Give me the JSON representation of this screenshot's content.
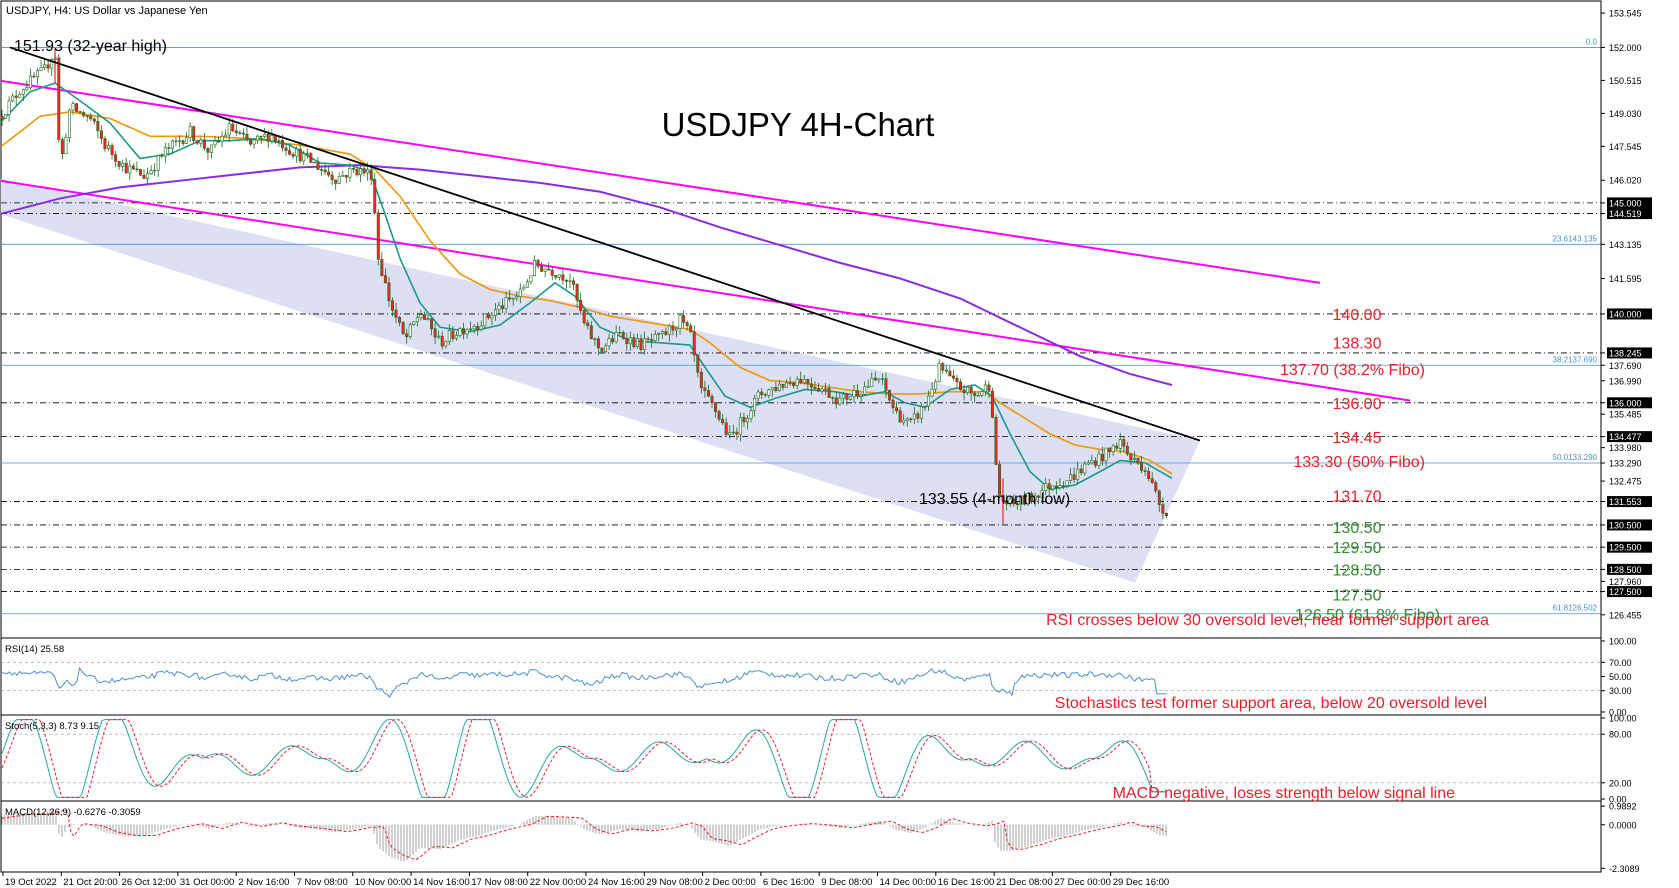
{
  "header": {
    "symbol_info": "USDJPY, H4:  US Dollar vs Japanese Yen",
    "chart_title": "USDJPY 4H-Chart"
  },
  "colors": {
    "support_label": "#2e8b2e",
    "resistance_label": "#e8202a",
    "channel_fill": "#dde0f5",
    "trendline": "#000000",
    "pink_line": "#ff00ff",
    "sma200": "#8a2be2",
    "sma50": "#f0960a",
    "sma20": "#1a9a8a",
    "candle": "#1a6b1a",
    "fibo": "#4a8fd8",
    "rsi_line": "#4a8fd8",
    "stoch_main": "#2aa8a0",
    "stoch_signal": "#e8202a",
    "macd_hist": "#a0a0a0",
    "macd_signal": "#e8202a"
  },
  "chart_data": [
    {
      "id": "price",
      "type": "candlestick",
      "title": "USDJPY 4H-Chart",
      "ylim": [
        125.5,
        154.0
      ],
      "close_path": [
        [
          0,
          148.9
        ],
        [
          20,
          150.1
        ],
        [
          45,
          151.0
        ],
        [
          55,
          151.9
        ],
        [
          60,
          146.5
        ],
        [
          70,
          149.3
        ],
        [
          90,
          148.8
        ],
        [
          105,
          147.6
        ],
        [
          125,
          146.6
        ],
        [
          145,
          146.2
        ],
        [
          165,
          147.3
        ],
        [
          190,
          148.2
        ],
        [
          210,
          147.3
        ],
        [
          230,
          148.4
        ],
        [
          250,
          147.6
        ],
        [
          270,
          148.1
        ],
        [
          290,
          147.4
        ],
        [
          310,
          146.9
        ],
        [
          335,
          146.1
        ],
        [
          355,
          146.5
        ],
        [
          372,
          146.3
        ],
        [
          378,
          142.6
        ],
        [
          390,
          140.5
        ],
        [
          405,
          138.8
        ],
        [
          420,
          140.1
        ],
        [
          440,
          138.7
        ],
        [
          460,
          139.3
        ],
        [
          480,
          139.6
        ],
        [
          500,
          140.3
        ],
        [
          520,
          140.9
        ],
        [
          535,
          142.2
        ],
        [
          550,
          142.0
        ],
        [
          570,
          141.6
        ],
        [
          585,
          139.4
        ],
        [
          600,
          138.4
        ],
        [
          620,
          139.1
        ],
        [
          640,
          138.6
        ],
        [
          660,
          138.9
        ],
        [
          680,
          139.7
        ],
        [
          690,
          139.1
        ],
        [
          700,
          136.6
        ],
        [
          715,
          135.7
        ],
        [
          730,
          134.4
        ],
        [
          745,
          135.4
        ],
        [
          760,
          136.4
        ],
        [
          780,
          136.8
        ],
        [
          800,
          137.1
        ],
        [
          820,
          136.7
        ],
        [
          840,
          136.1
        ],
        [
          860,
          136.6
        ],
        [
          880,
          137.1
        ],
        [
          895,
          135.6
        ],
        [
          910,
          135.0
        ],
        [
          925,
          135.9
        ],
        [
          940,
          137.6
        ],
        [
          955,
          136.8
        ],
        [
          975,
          136.3
        ],
        [
          992,
          136.9
        ],
        [
          993,
          134.0
        ],
        [
          1000,
          131.7
        ],
        [
          1010,
          131.4
        ],
        [
          1030,
          131.7
        ],
        [
          1050,
          132.3
        ],
        [
          1070,
          132.6
        ],
        [
          1090,
          133.3
        ],
        [
          1110,
          133.8
        ],
        [
          1120,
          134.3
        ],
        [
          1130,
          133.5
        ],
        [
          1145,
          133.1
        ],
        [
          1160,
          131.4
        ],
        [
          1168,
          131.05
        ]
      ],
      "sma20": [
        [
          0,
          148.6
        ],
        [
          30,
          150.0
        ],
        [
          55,
          150.4
        ],
        [
          80,
          149.6
        ],
        [
          110,
          148.6
        ],
        [
          140,
          147.0
        ],
        [
          170,
          147.2
        ],
        [
          200,
          147.8
        ],
        [
          230,
          147.8
        ],
        [
          260,
          147.9
        ],
        [
          290,
          147.6
        ],
        [
          320,
          146.8
        ],
        [
          350,
          146.7
        ],
        [
          370,
          146.4
        ],
        [
          385,
          144.5
        ],
        [
          400,
          142.5
        ],
        [
          420,
          140.5
        ],
        [
          440,
          139.4
        ],
        [
          470,
          139.2
        ],
        [
          500,
          139.5
        ],
        [
          530,
          140.5
        ],
        [
          555,
          141.4
        ],
        [
          575,
          140.8
        ],
        [
          600,
          139.4
        ],
        [
          630,
          138.8
        ],
        [
          660,
          138.7
        ],
        [
          690,
          138.6
        ],
        [
          705,
          137.6
        ],
        [
          725,
          136.3
        ],
        [
          750,
          135.8
        ],
        [
          775,
          136.2
        ],
        [
          805,
          136.6
        ],
        [
          835,
          136.5
        ],
        [
          860,
          136.3
        ],
        [
          885,
          136.5
        ],
        [
          905,
          136.0
        ],
        [
          925,
          135.8
        ],
        [
          950,
          136.6
        ],
        [
          975,
          136.8
        ],
        [
          992,
          136.3
        ],
        [
          1010,
          134.6
        ],
        [
          1030,
          132.9
        ],
        [
          1050,
          132.1
        ],
        [
          1075,
          132.3
        ],
        [
          1100,
          132.9
        ],
        [
          1120,
          133.4
        ],
        [
          1145,
          133.3
        ],
        [
          1172,
          132.6
        ]
      ],
      "sma50": [
        [
          0,
          147.5
        ],
        [
          40,
          148.9
        ],
        [
          70,
          149.1
        ],
        [
          110,
          148.8
        ],
        [
          150,
          148.0
        ],
        [
          200,
          148.0
        ],
        [
          250,
          147.9
        ],
        [
          300,
          147.6
        ],
        [
          350,
          147.2
        ],
        [
          375,
          146.5
        ],
        [
          400,
          145.3
        ],
        [
          430,
          143.3
        ],
        [
          460,
          141.8
        ],
        [
          490,
          141.1
        ],
        [
          520,
          140.8
        ],
        [
          550,
          140.6
        ],
        [
          580,
          140.3
        ],
        [
          610,
          139.9
        ],
        [
          650,
          139.6
        ],
        [
          690,
          139.3
        ],
        [
          710,
          138.7
        ],
        [
          740,
          137.6
        ],
        [
          770,
          137.0
        ],
        [
          800,
          136.9
        ],
        [
          830,
          136.7
        ],
        [
          860,
          136.5
        ],
        [
          890,
          136.4
        ],
        [
          920,
          136.4
        ],
        [
          950,
          136.5
        ],
        [
          985,
          136.5
        ],
        [
          1000,
          136.0
        ],
        [
          1025,
          135.3
        ],
        [
          1050,
          134.6
        ],
        [
          1075,
          134.1
        ],
        [
          1100,
          133.9
        ],
        [
          1125,
          133.8
        ],
        [
          1150,
          133.4
        ],
        [
          1172,
          132.8
        ]
      ],
      "sma200": [
        [
          0,
          144.5
        ],
        [
          60,
          145.2
        ],
        [
          120,
          145.7
        ],
        [
          180,
          146.0
        ],
        [
          240,
          146.3
        ],
        [
          300,
          146.6
        ],
        [
          360,
          146.7
        ],
        [
          420,
          146.5
        ],
        [
          480,
          146.2
        ],
        [
          540,
          145.9
        ],
        [
          600,
          145.5
        ],
        [
          660,
          144.8
        ],
        [
          720,
          143.9
        ],
        [
          780,
          143.1
        ],
        [
          840,
          142.3
        ],
        [
          900,
          141.6
        ],
        [
          960,
          140.7
        ],
        [
          1020,
          139.4
        ],
        [
          1080,
          138.1
        ],
        [
          1130,
          137.3
        ],
        [
          1172,
          136.8
        ]
      ],
      "trendline": [
        [
          10,
          152.0
        ],
        [
          1200,
          134.3
        ]
      ],
      "pink_upper": [
        [
          0,
          150.5
        ],
        [
          1320,
          141.4
        ]
      ],
      "pink_lower": [
        [
          0,
          146.0
        ],
        [
          1410,
          136.1
        ]
      ],
      "channel": [
        [
          0,
          144.5
        ],
        [
          0,
          146.1
        ],
        [
          1200,
          134.3
        ],
        [
          1135,
          127.9
        ]
      ],
      "fibo_levels": [
        {
          "value": 152.0,
          "label": "0.0"
        },
        {
          "value": 143.135,
          "label": "23.6143.135"
        },
        {
          "value": 137.69,
          "label": "38.2137.690"
        },
        {
          "value": 133.29,
          "label": "50.0133.290"
        },
        {
          "value": 126.502,
          "label": "61.8126.502"
        }
      ],
      "hlines": [
        145.0,
        144.519,
        140.0,
        138.245,
        136.0,
        134.477,
        131.553,
        130.5,
        129.5,
        128.5,
        127.5
      ],
      "yaxis_ticks": [
        "153.545",
        "152.000",
        "150.515",
        "149.030",
        "147.545",
        "146.020",
        "145.000",
        "144.519",
        "143.135",
        "141.595",
        "140.000",
        "138.245",
        "137.690",
        "136.990",
        "136.000",
        "135.485",
        "134.477",
        "133.980",
        "133.290",
        "132.475",
        "131.553",
        "130.500",
        "129.500",
        "128.500",
        "127.960",
        "127.500",
        "126.455"
      ],
      "xaxis_ticks": [
        "19 Oct 2022",
        "21 Oct 20:00",
        "26 Oct 12:00",
        "31 Oct 00:00",
        "2 Nov 16:00",
        "7 Nov 08:00",
        "10 Nov 00:00",
        "14 Nov 16:00",
        "17 Nov 08:00",
        "22 Nov 00:00",
        "24 Nov 16:00",
        "29 Nov 08:00",
        "2 Dec 00:00",
        "6 Dec 16:00",
        "9 Dec 08:00",
        "14 Dec 00:00",
        "16 Dec 16:00",
        "21 Dec 08:00",
        "27 Dec 00:00",
        "29 Dec 16:00"
      ],
      "annotations": [
        {
          "text": "151.93 (32-year high)",
          "kind": "black"
        },
        {
          "text": "133.55 (4-month low)",
          "kind": "black"
        },
        {
          "text": "140.00",
          "kind": "resistance",
          "value": 140.0
        },
        {
          "text": "138.30",
          "kind": "resistance",
          "value": 138.3
        },
        {
          "text": "137.70 (38.2% Fibo)",
          "kind": "resistance",
          "value": 137.7
        },
        {
          "text": "136.00",
          "kind": "resistance",
          "value": 136.0
        },
        {
          "text": "134.45",
          "kind": "resistance",
          "value": 134.45
        },
        {
          "text": "133.30 (50% Fibo)",
          "kind": "resistance",
          "value": 133.3
        },
        {
          "text": "131.70",
          "kind": "resistance",
          "value": 131.7
        },
        {
          "text": "130.50",
          "kind": "support",
          "value": 130.5
        },
        {
          "text": "129.50",
          "kind": "support",
          "value": 129.5
        },
        {
          "text": "128.50",
          "kind": "support",
          "value": 128.5
        },
        {
          "text": "127.50",
          "kind": "support",
          "value": 127.5
        },
        {
          "text": "126.50 (61.8% Fibo)",
          "kind": "support",
          "value": 126.5
        }
      ]
    },
    {
      "id": "rsi",
      "type": "line",
      "label": "RSI(14) 25.58",
      "ylim": [
        0,
        100
      ],
      "yaxis_ticks": [
        "100.00",
        "70.00",
        "50.00",
        "30.00",
        "0.00"
      ],
      "levels": [
        70,
        30
      ],
      "annotation": "RSI crosses below 30 oversold level, near former support area"
    },
    {
      "id": "stochastics",
      "type": "line",
      "label": "Stoch(5,3,3) 8.73 9.15",
      "ylim": [
        0,
        100
      ],
      "yaxis_ticks": [
        "100.00",
        "80.00",
        "20.00",
        "0.00"
      ],
      "levels": [
        80,
        20
      ],
      "annotation": "Stochastics test former support area, below 20 oversold level"
    },
    {
      "id": "macd",
      "type": "bar",
      "label": "MACD(12,26,9) -0.6276 -0.3059",
      "ylim": [
        -2.45,
        1.1
      ],
      "yaxis_ticks": [
        "0.9892",
        "0.0000",
        "-2.3089"
      ],
      "annotation": "MACD negative, loses strength below signal line"
    }
  ]
}
